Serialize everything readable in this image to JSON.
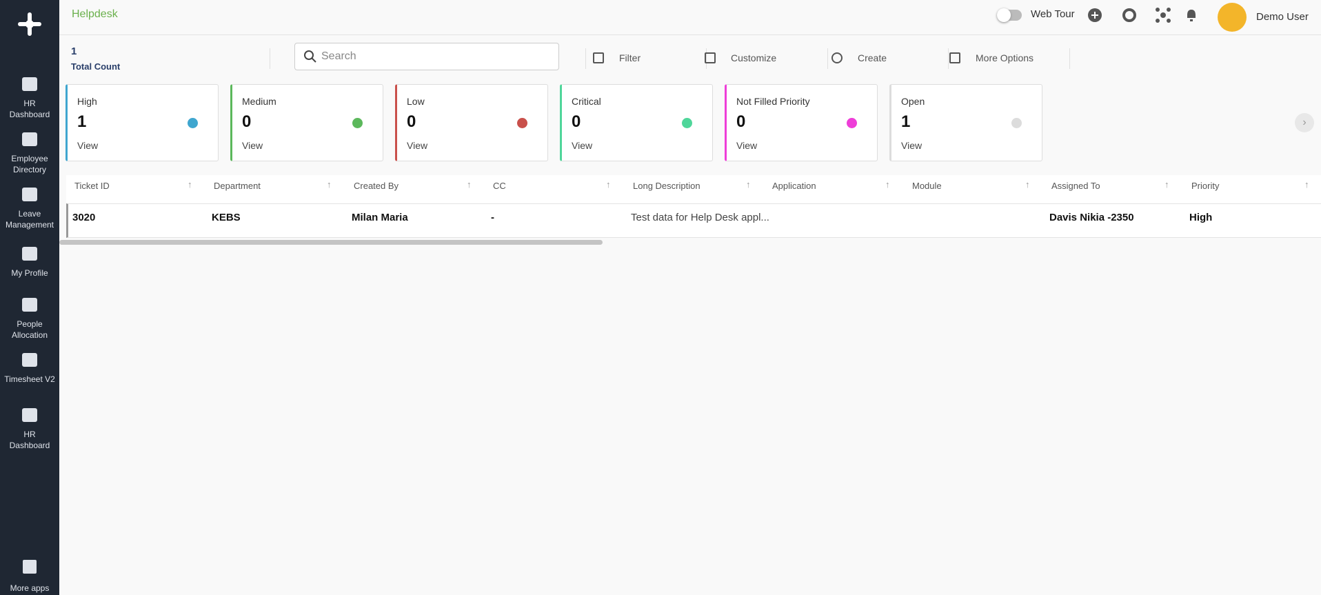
{
  "header": {
    "app_title": "Helpdesk",
    "web_tour": "Web Tour",
    "user": "Demo User"
  },
  "sidebar": {
    "items": [
      "HR Dashboard",
      "Employee Directory",
      "Leave Management",
      "My Profile",
      "People Allocation",
      "Timesheet V2",
      "HR Dashboard"
    ],
    "more": "More apps"
  },
  "toolbar": {
    "count": 1,
    "count_label": "Total Count",
    "search_placeholder": "Search",
    "actions": [
      "Filter",
      "Customize",
      "Create",
      "More Options"
    ]
  },
  "cards": [
    {
      "label": "High",
      "count": 1,
      "link": "View",
      "color": "#3fa6cf"
    },
    {
      "label": "Medium",
      "count": 0,
      "link": "View",
      "color": "#5cb85c"
    },
    {
      "label": "Low",
      "count": 0,
      "link": "View",
      "color": "#c9504b"
    },
    {
      "label": "Critical",
      "count": 0,
      "link": "View",
      "color": "#4fd69a"
    },
    {
      "label": "Not Filled Priority",
      "count": 0,
      "link": "View",
      "color": "#ee3ed8"
    },
    {
      "label": "Open",
      "count": 1,
      "link": "View",
      "color": "#dcdcdc"
    }
  ],
  "table": {
    "columns": [
      "Ticket ID",
      "Department",
      "Created By",
      "CC",
      "Long Description",
      "Application",
      "Module",
      "Assigned To",
      "Priority"
    ],
    "rows": [
      [
        "3020",
        "KEBS",
        "Milan Maria",
        "-",
        "Test data for Help Desk appl...",
        null,
        null,
        "Davis Nikia -2350",
        "High"
      ]
    ]
  }
}
